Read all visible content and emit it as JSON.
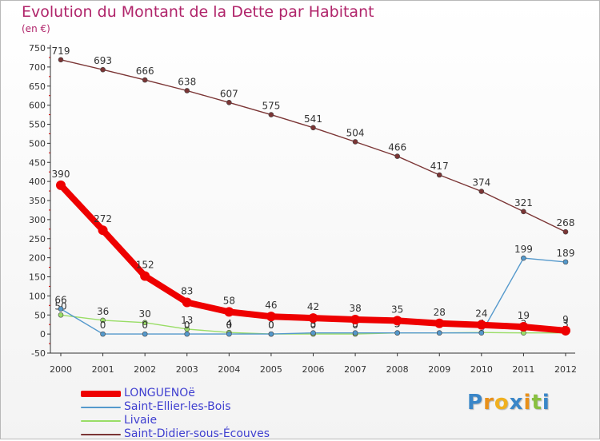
{
  "chart_data": {
    "type": "line",
    "title": "Evolution du Montant de la Dette par Habitant",
    "unit_label": "(en €)",
    "xlabel": "",
    "ylabel": "",
    "x": [
      "2000",
      "2001",
      "2002",
      "2003",
      "2004",
      "2005",
      "2006",
      "2007",
      "2008",
      "2009",
      "2010",
      "2011",
      "2012"
    ],
    "ylim": [
      -50,
      750
    ],
    "yticks": [
      -50,
      0,
      50,
      100,
      150,
      200,
      250,
      300,
      350,
      400,
      450,
      500,
      550,
      600,
      650,
      700,
      750
    ],
    "grid": false,
    "legend_position": "bottom-left",
    "series": [
      {
        "name": "Saint-Didier-sous-Écouves",
        "color": "#7b3535",
        "values": [
          719,
          693,
          666,
          638,
          607,
          575,
          541,
          504,
          466,
          417,
          374,
          321,
          268
        ],
        "labels": [
          "719",
          "693",
          "666",
          "638",
          "607",
          "575",
          "541",
          "504",
          "466",
          "417",
          "374",
          "321",
          "268"
        ]
      },
      {
        "name": "Livaie",
        "color": "#99dd66",
        "values": [
          50,
          36,
          30,
          13,
          4,
          0,
          0,
          0,
          3,
          3,
          4,
          3,
          3
        ],
        "labels": [
          "50",
          "36",
          "30",
          "13",
          "4",
          "0",
          "0",
          "0",
          "3",
          "3",
          "4",
          "3",
          "3"
        ]
      },
      {
        "name": "Saint-Ellier-les-Bois",
        "color": "#5599cc",
        "values": [
          66,
          0,
          0,
          0,
          0,
          0,
          3,
          3,
          3,
          3,
          3,
          199,
          189
        ],
        "labels": [
          "66",
          "0",
          "0",
          "0",
          "0",
          "0",
          "3",
          "3",
          "3",
          "3",
          "3",
          "199",
          "189"
        ]
      },
      {
        "name": "LONGUENOë",
        "color": "#ee0000",
        "values": [
          390,
          272,
          152,
          83,
          58,
          46,
          42,
          38,
          35,
          28,
          24,
          19,
          9
        ],
        "labels": [
          "390",
          "272",
          "152",
          "83",
          "58",
          "46",
          "42",
          "38",
          "35",
          "28",
          "24",
          "19",
          "9"
        ]
      }
    ],
    "legend": [
      "LONGUENOë",
      "Saint-Ellier-les-Bois",
      "Livaie",
      "Saint-Didier-sous-Écouves"
    ]
  },
  "logo": {
    "letters": [
      "P",
      "r",
      "o",
      "x",
      "i",
      "t",
      "i"
    ],
    "colors": [
      "#3a86c8",
      "#e8901a",
      "#f0b020",
      "#3a86c8",
      "#e8901a",
      "#88c040",
      "#3a86c8"
    ]
  }
}
